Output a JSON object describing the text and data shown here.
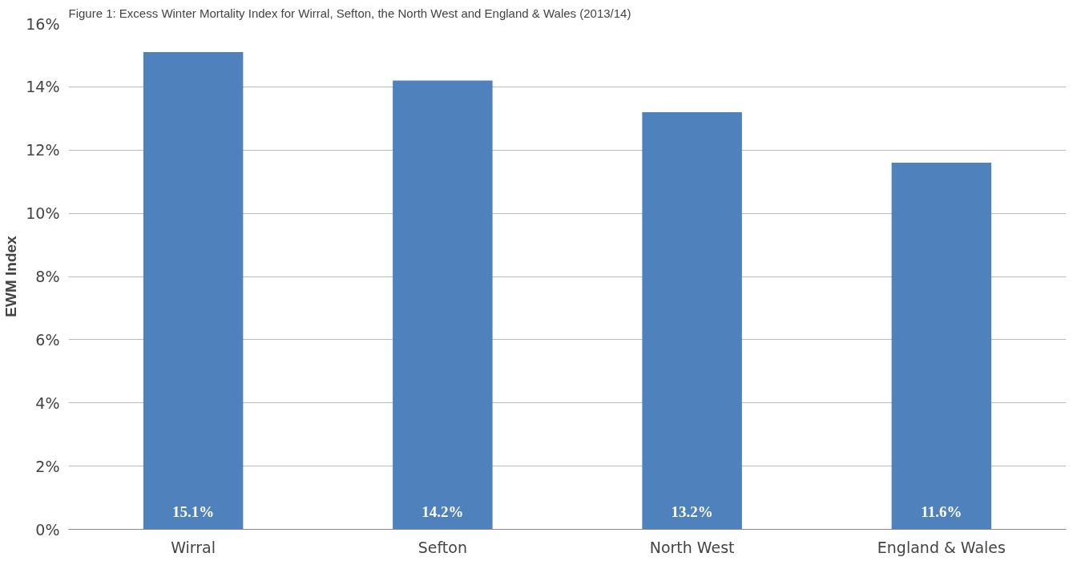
{
  "chart_data": {
    "type": "bar",
    "title": "Figure 1: Excess Winter Mortality Index for Wirral, Sefton, the North West and England & Wales (2013/14)",
    "ylabel": "EWM Index",
    "categories": [
      "Wirral",
      "Sefton",
      "North West",
      "England & Wales"
    ],
    "values": [
      15.1,
      14.2,
      13.2,
      11.6
    ],
    "color": "#4f81bd",
    "value_labels": [
      "15.1%",
      "14.2%",
      "13.2%",
      "11.6%"
    ],
    "ylim": [
      0,
      16
    ],
    "yticks": [
      {
        "value": 0,
        "label": "0%"
      },
      {
        "value": 2,
        "label": "2%"
      },
      {
        "value": 4,
        "label": "4%"
      },
      {
        "value": 6,
        "label": "6%"
      },
      {
        "value": 8,
        "label": "8%"
      },
      {
        "value": 10,
        "label": "10%"
      },
      {
        "value": 12,
        "label": "12%"
      },
      {
        "value": 14,
        "label": "14%"
      },
      {
        "value": 16,
        "label": "16%"
      }
    ],
    "grid": "y"
  }
}
